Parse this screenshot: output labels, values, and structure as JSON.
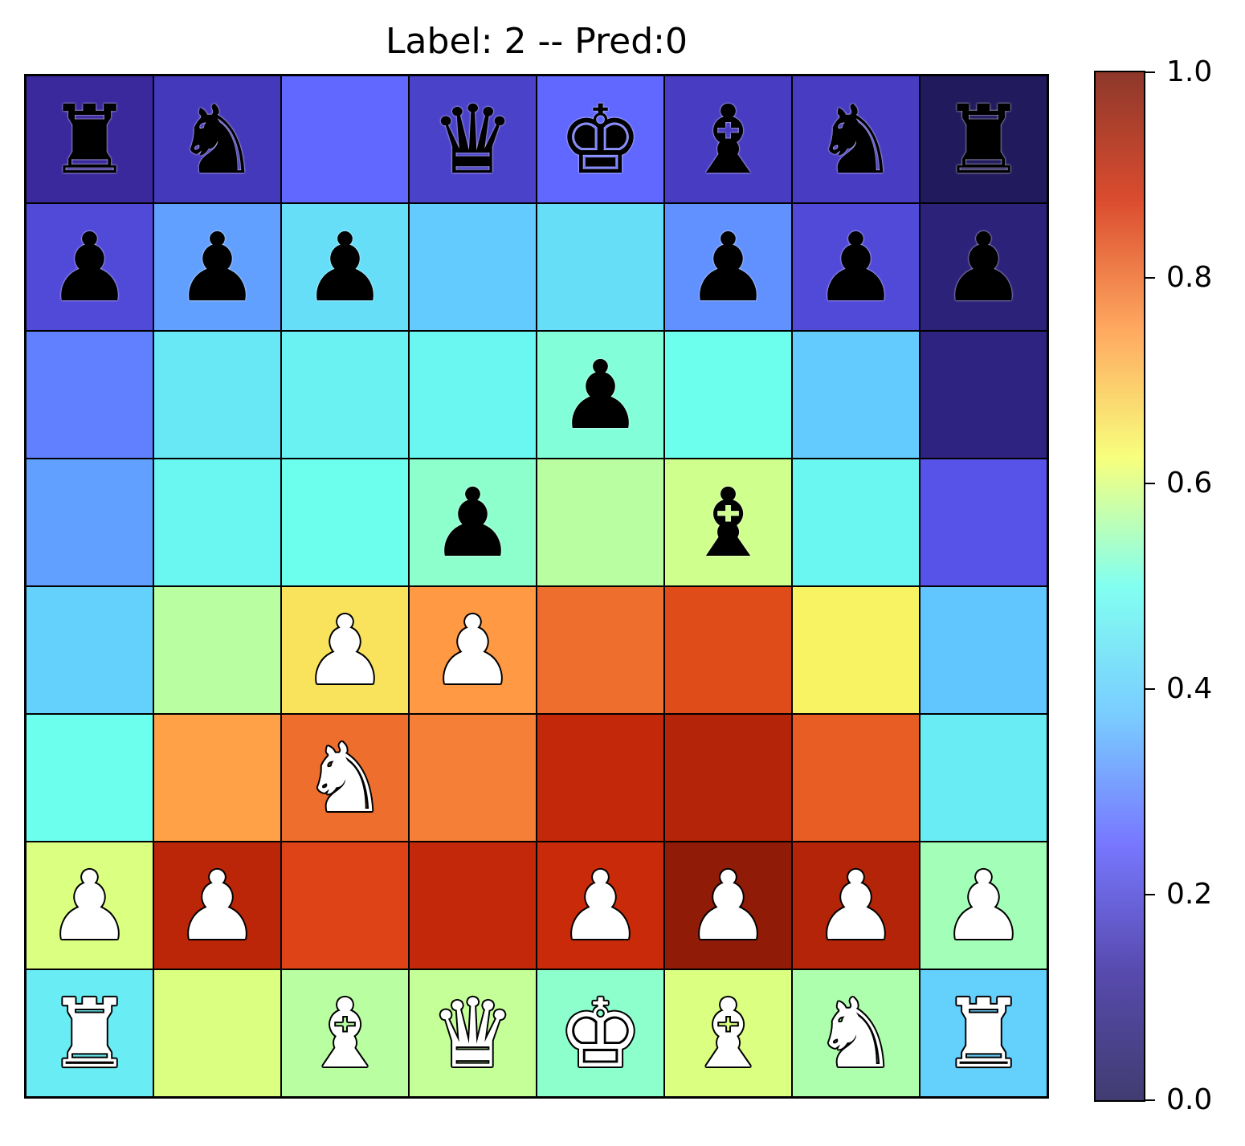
{
  "title": "Label: 2 -- Pred:0",
  "board": {
    "rows": [
      {
        "values": [
          0.12,
          0.16,
          0.26,
          0.18,
          0.26,
          0.17,
          0.17,
          0.01
        ],
        "pieces": [
          "rook-black",
          "knight-black",
          "",
          "queen-black",
          "king-black",
          "bishop-black",
          "knight-black",
          "rook-black"
        ]
      },
      {
        "values": [
          0.2,
          0.33,
          0.43,
          0.39,
          0.43,
          0.31,
          0.2,
          0.06
        ],
        "pieces": [
          "pawn-black",
          "pawn-black",
          "pawn-black",
          "",
          "",
          "pawn-black",
          "pawn-black",
          "pawn-black"
        ]
      },
      {
        "values": [
          0.29,
          0.45,
          0.47,
          0.48,
          0.52,
          0.5,
          0.39,
          0.07
        ],
        "pieces": [
          "",
          "",
          "",
          "",
          "pawn-black",
          "",
          "",
          ""
        ]
      },
      {
        "values": [
          0.33,
          0.48,
          0.5,
          0.53,
          0.57,
          0.59,
          0.48,
          0.22
        ],
        "pieces": [
          "",
          "",
          "",
          "pawn-black",
          "",
          "bishop-black",
          "",
          ""
        ]
      },
      {
        "values": [
          0.4,
          0.57,
          0.66,
          0.75,
          0.8,
          0.84,
          0.64,
          0.38
        ],
        "pieces": [
          "",
          "",
          "pawn-white",
          "pawn-white",
          "",
          "",
          "",
          ""
        ]
      },
      {
        "values": [
          0.5,
          0.74,
          0.8,
          0.78,
          0.9,
          0.92,
          0.82,
          0.46
        ],
        "pieces": [
          "",
          "",
          "knight-white",
          "",
          "",
          "",
          "",
          ""
        ]
      },
      {
        "values": [
          0.6,
          0.91,
          0.85,
          0.9,
          0.89,
          0.97,
          0.92,
          0.55
        ],
        "pieces": [
          "pawn-white",
          "pawn-white",
          "",
          "",
          "pawn-white",
          "pawn-white",
          "pawn-white",
          "pawn-white"
        ]
      },
      {
        "values": [
          0.46,
          0.6,
          0.57,
          0.58,
          0.53,
          0.6,
          0.56,
          0.4
        ],
        "pieces": [
          "rook-white",
          "",
          "bishop-white",
          "queen-white",
          "king-white",
          "bishop-white",
          "knight-white",
          "rook-white"
        ]
      }
    ]
  },
  "colorbar": {
    "range": [
      0.0,
      1.0
    ],
    "ticks": [
      "0.0",
      "0.2",
      "0.4",
      "0.6",
      "0.8",
      "1.0"
    ],
    "colormap": [
      "#1f1a57",
      "#3a2aa0",
      "#6060ff",
      "#62c4ff",
      "#6cffee",
      "#f6ff66",
      "#ff9944",
      "#d42d0a",
      "#7a1505"
    ]
  }
}
